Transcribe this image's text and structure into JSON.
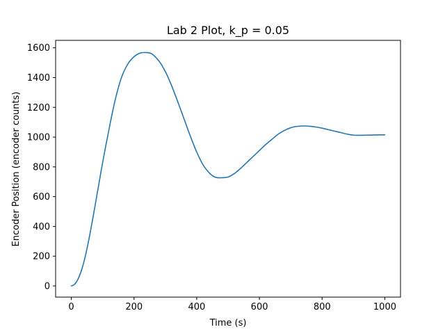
{
  "chart_data": {
    "type": "line",
    "title": "Lab 2 Plot, k_p = 0.05",
    "xlabel": "Time (s)",
    "ylabel": "Encoder Position (encoder counts)",
    "xlim": [
      -50,
      1050
    ],
    "ylim": [
      -75,
      1650
    ],
    "x_ticks": [
      0,
      200,
      400,
      600,
      800,
      1000
    ],
    "x_tick_labels": [
      "0",
      "200",
      "400",
      "600",
      "800",
      "1000"
    ],
    "y_ticks": [
      0,
      200,
      400,
      600,
      800,
      1000,
      1200,
      1400,
      1600
    ],
    "y_tick_labels": [
      "0",
      "200",
      "400",
      "600",
      "800",
      "1000",
      "1200",
      "1400",
      "1600"
    ],
    "grid": false,
    "series": [
      {
        "name": "encoder position",
        "color": "#1f77b4",
        "x": [
          0,
          10,
          20,
          30,
          40,
          50,
          60,
          70,
          80,
          90,
          100,
          120,
          140,
          160,
          180,
          200,
          220,
          240,
          250,
          260,
          280,
          300,
          320,
          340,
          360,
          380,
          400,
          420,
          440,
          460,
          480,
          500,
          520,
          540,
          560,
          580,
          600,
          620,
          640,
          660,
          680,
          700,
          720,
          740,
          760,
          780,
          800,
          820,
          840,
          860,
          880,
          900,
          920,
          940,
          960,
          980,
          1000
        ],
        "values": [
          0,
          10,
          40,
          90,
          160,
          250,
          355,
          470,
          590,
          710,
          830,
          1050,
          1250,
          1400,
          1490,
          1540,
          1565,
          1568,
          1565,
          1555,
          1510,
          1440,
          1345,
          1235,
          1120,
          1005,
          900,
          815,
          760,
          730,
          727,
          732,
          755,
          790,
          830,
          870,
          910,
          950,
          985,
          1020,
          1045,
          1063,
          1072,
          1075,
          1073,
          1068,
          1060,
          1050,
          1040,
          1030,
          1020,
          1013,
          1012,
          1013,
          1014,
          1015,
          1015
        ]
      }
    ]
  }
}
